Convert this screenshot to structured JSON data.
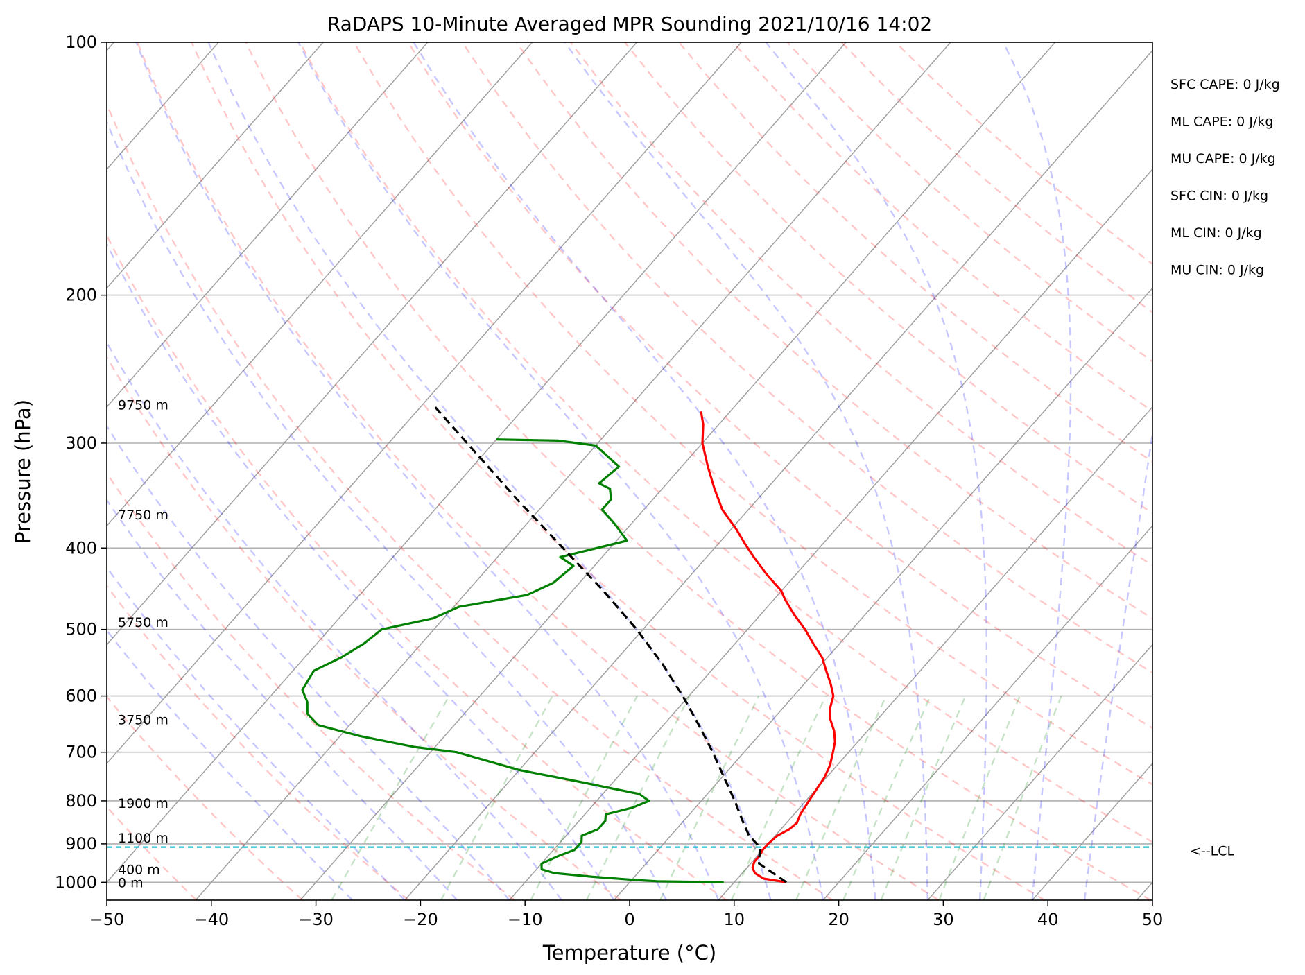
{
  "chart_data": {
    "type": "line",
    "title": "RaDAPS 10-Minute Averaged MPR Sounding 2021/10/16 14:02",
    "xlabel": "Temperature (°C)",
    "ylabel": "Pressure (hPa)",
    "xlim": [
      -50,
      50
    ],
    "ylim": [
      1050,
      100
    ],
    "y_scale": "log",
    "skew": true,
    "grid": true,
    "x_ticks": [
      "−50",
      "−40",
      "−30",
      "−20",
      "−10",
      "0",
      "10",
      "20",
      "30",
      "40",
      "50"
    ],
    "x_tick_values": [
      -50,
      -40,
      -30,
      -20,
      -10,
      0,
      10,
      20,
      30,
      40,
      50
    ],
    "y_ticks": [
      "100",
      "200",
      "300",
      "400",
      "500",
      "600",
      "700",
      "800",
      "900",
      "1000"
    ],
    "y_tick_values": [
      100,
      200,
      300,
      400,
      500,
      600,
      700,
      800,
      900,
      1000
    ],
    "height_labels": [
      {
        "text": "9750 m",
        "pressure": 270
      },
      {
        "text": "7750 m",
        "pressure": 365
      },
      {
        "text": "5750 m",
        "pressure": 490
      },
      {
        "text": "3750 m",
        "pressure": 640
      },
      {
        "text": "1900 m",
        "pressure": 805
      },
      {
        "text": "1100 m",
        "pressure": 885
      },
      {
        "text": "400 m",
        "pressure": 965
      },
      {
        "text": "0 m",
        "pressure": 1000
      }
    ],
    "indices": [
      "SFC CAPE: 0 J/kg",
      "ML CAPE: 0 J/kg",
      "MU CAPE: 0 J/kg",
      "SFC CIN: 0 J/kg",
      "ML CIN: 0 J/kg",
      "MU CIN: 0 J/kg"
    ],
    "lcl": {
      "label": "<--LCL",
      "pressure": 908
    },
    "series": [
      {
        "role": "temperature",
        "color": "#ff0000",
        "points": [
          [
            1000,
            15.0
          ],
          [
            990,
            12.5
          ],
          [
            975,
            11.2
          ],
          [
            960,
            10.5
          ],
          [
            945,
            10.2
          ],
          [
            930,
            10.2
          ],
          [
            915,
            10.0
          ],
          [
            900,
            10.0
          ],
          [
            880,
            10.2
          ],
          [
            865,
            10.8
          ],
          [
            850,
            11.0
          ],
          [
            830,
            10.6
          ],
          [
            810,
            10.4
          ],
          [
            790,
            10.2
          ],
          [
            770,
            10.0
          ],
          [
            750,
            9.8
          ],
          [
            725,
            9.3
          ],
          [
            700,
            8.5
          ],
          [
            680,
            7.8
          ],
          [
            660,
            6.8
          ],
          [
            640,
            5.5
          ],
          [
            620,
            4.5
          ],
          [
            600,
            3.8
          ],
          [
            580,
            2.5
          ],
          [
            560,
            1.0
          ],
          [
            540,
            -0.5
          ],
          [
            520,
            -2.5
          ],
          [
            500,
            -4.5
          ],
          [
            480,
            -6.8
          ],
          [
            460,
            -9.0
          ],
          [
            450,
            -10.0
          ],
          [
            430,
            -12.8
          ],
          [
            410,
            -15.5
          ],
          [
            395,
            -17.5
          ],
          [
            380,
            -19.5
          ],
          [
            360,
            -22.5
          ],
          [
            340,
            -25.0
          ],
          [
            320,
            -27.5
          ],
          [
            300,
            -30.0
          ],
          [
            285,
            -31.5
          ],
          [
            275,
            -32.8
          ]
        ]
      },
      {
        "role": "dewpoint",
        "color": "#008000",
        "points": [
          [
            1000,
            9.0
          ],
          [
            997,
            2.5
          ],
          [
            993,
            0.0
          ],
          [
            985,
            -4.0
          ],
          [
            975,
            -8.0
          ],
          [
            965,
            -9.5
          ],
          [
            950,
            -10.0
          ],
          [
            930,
            -9.0
          ],
          [
            915,
            -8.0
          ],
          [
            895,
            -8.0
          ],
          [
            880,
            -8.5
          ],
          [
            865,
            -7.5
          ],
          [
            845,
            -7.5
          ],
          [
            830,
            -8.0
          ],
          [
            815,
            -6.0
          ],
          [
            800,
            -5.0
          ],
          [
            785,
            -6.5
          ],
          [
            760,
            -13.0
          ],
          [
            735,
            -20.0
          ],
          [
            700,
            -27.5
          ],
          [
            690,
            -32.0
          ],
          [
            670,
            -38.0
          ],
          [
            650,
            -43.0
          ],
          [
            630,
            -45.0
          ],
          [
            610,
            -46.0
          ],
          [
            590,
            -47.5
          ],
          [
            560,
            -48.0
          ],
          [
            540,
            -46.5
          ],
          [
            520,
            -45.5
          ],
          [
            500,
            -45.0
          ],
          [
            485,
            -41.0
          ],
          [
            470,
            -39.5
          ],
          [
            455,
            -34.0
          ],
          [
            440,
            -32.5
          ],
          [
            420,
            -32.0
          ],
          [
            410,
            -34.0
          ],
          [
            392,
            -29.0
          ],
          [
            375,
            -31.5
          ],
          [
            360,
            -34.0
          ],
          [
            350,
            -34.0
          ],
          [
            340,
            -35.0
          ],
          [
            335,
            -36.5
          ],
          [
            320,
            -36.0
          ],
          [
            302,
            -40.0
          ],
          [
            298,
            -44.0
          ],
          [
            297,
            -50.0
          ]
        ]
      },
      {
        "role": "parcel",
        "color": "#000000",
        "points": [
          [
            1000,
            15.0
          ],
          [
            950,
            10.8
          ],
          [
            908,
            9.5
          ],
          [
            880,
            7.5
          ],
          [
            850,
            5.9
          ],
          [
            800,
            3.2
          ],
          [
            750,
            0.2
          ],
          [
            700,
            -3.0
          ],
          [
            650,
            -6.6
          ],
          [
            600,
            -10.6
          ],
          [
            550,
            -15.2
          ],
          [
            500,
            -20.6
          ],
          [
            450,
            -27.0
          ],
          [
            400,
            -34.5
          ],
          [
            350,
            -43.0
          ],
          [
            300,
            -52.5
          ],
          [
            270,
            -59.0
          ]
        ]
      }
    ]
  }
}
